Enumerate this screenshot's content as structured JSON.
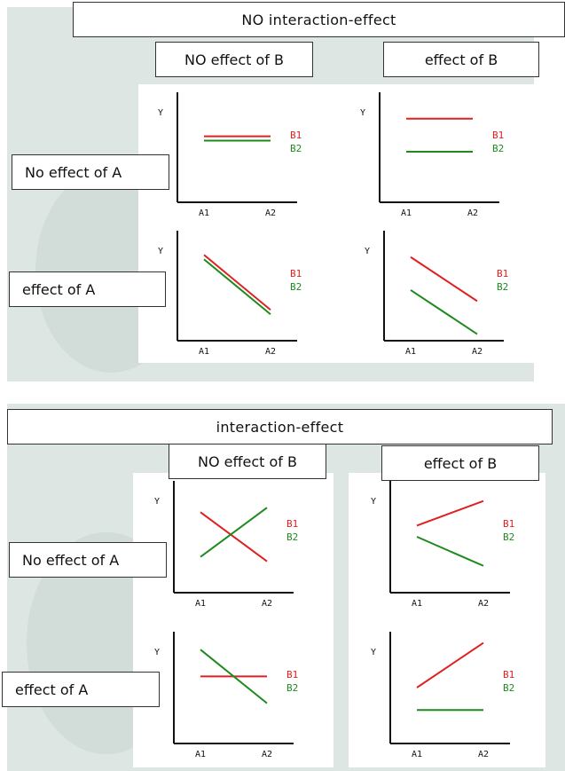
{
  "top_section": {
    "title": "NO interaction-effect",
    "col_headers": [
      "NO effect of B",
      "effect of B"
    ],
    "row_headers": [
      "No effect of A",
      "effect of A"
    ]
  },
  "bottom_section": {
    "title": "interaction-effect",
    "col_headers": [
      "NO effect of B",
      "effect of B"
    ],
    "row_headers": [
      "No effect of A",
      "effect of A"
    ]
  },
  "colors": {
    "b1": "#e02020",
    "b2": "#1e8a1e",
    "axis": "#111111"
  },
  "chart_data": [
    {
      "id": "t00",
      "type": "line",
      "xlabel_ticks": [
        "A1",
        "A2"
      ],
      "ylabel": "Y",
      "ylim": [
        0,
        10
      ],
      "series": [
        {
          "name": "B1",
          "values": [
            6.0,
            6.0
          ]
        },
        {
          "name": "B2",
          "values": [
            5.6,
            5.6
          ]
        }
      ]
    },
    {
      "id": "t01",
      "type": "line",
      "xlabel_ticks": [
        "A1",
        "A2"
      ],
      "ylabel": "Y",
      "ylim": [
        0,
        10
      ],
      "series": [
        {
          "name": "B1",
          "values": [
            7.6,
            7.6
          ]
        },
        {
          "name": "B2",
          "values": [
            4.6,
            4.6
          ]
        }
      ]
    },
    {
      "id": "t10",
      "type": "line",
      "xlabel_ticks": [
        "A1",
        "A2"
      ],
      "ylabel": "Y",
      "ylim": [
        0,
        10
      ],
      "series": [
        {
          "name": "B1",
          "values": [
            7.8,
            2.8
          ]
        },
        {
          "name": "B2",
          "values": [
            7.4,
            2.4
          ]
        }
      ]
    },
    {
      "id": "t11",
      "type": "line",
      "xlabel_ticks": [
        "A1",
        "A2"
      ],
      "ylabel": "Y",
      "ylim": [
        0,
        10
      ],
      "series": [
        {
          "name": "B1",
          "values": [
            7.6,
            3.6
          ]
        },
        {
          "name": "B2",
          "values": [
            4.6,
            0.6
          ]
        }
      ]
    },
    {
      "id": "b00",
      "type": "line",
      "xlabel_ticks": [
        "A1",
        "A2"
      ],
      "ylabel": "Y",
      "ylim": [
        0,
        10
      ],
      "series": [
        {
          "name": "B1",
          "values": [
            7.2,
            2.8
          ]
        },
        {
          "name": "B2",
          "values": [
            3.2,
            7.6
          ]
        }
      ]
    },
    {
      "id": "b01",
      "type": "line",
      "xlabel_ticks": [
        "A1",
        "A2"
      ],
      "ylabel": "Y",
      "ylim": [
        0,
        10
      ],
      "series": [
        {
          "name": "B1",
          "values": [
            6.0,
            8.2
          ]
        },
        {
          "name": "B2",
          "values": [
            5.0,
            2.4
          ]
        }
      ]
    },
    {
      "id": "b10",
      "type": "line",
      "xlabel_ticks": [
        "A1",
        "A2"
      ],
      "ylabel": "Y",
      "ylim": [
        0,
        10
      ],
      "series": [
        {
          "name": "B1",
          "values": [
            6.0,
            6.0
          ]
        },
        {
          "name": "B2",
          "values": [
            8.4,
            3.6
          ]
        }
      ]
    },
    {
      "id": "b11",
      "type": "line",
      "xlabel_ticks": [
        "A1",
        "A2"
      ],
      "ylabel": "Y",
      "ylim": [
        0,
        10
      ],
      "series": [
        {
          "name": "B1",
          "values": [
            5.0,
            9.0
          ]
        },
        {
          "name": "B2",
          "values": [
            3.0,
            3.0
          ]
        }
      ]
    }
  ]
}
